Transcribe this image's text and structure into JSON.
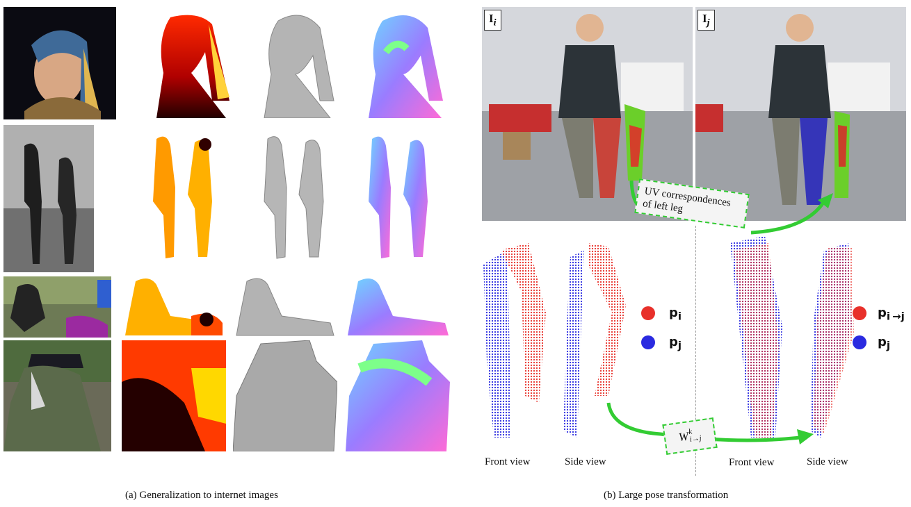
{
  "left_panel": {
    "caption": "(a)  Generalization to internet images"
  },
  "right_panel": {
    "caption": "(b)  Large pose transformation",
    "image_i_label": "I",
    "image_i_sub": "i",
    "image_j_label": "I",
    "image_j_sub": "j",
    "uv_label_line1": "UV correspondences",
    "uv_label_line2": "of left leg",
    "warp_label": "W",
    "warp_sup": "k",
    "warp_sub": "i→j",
    "legend_left": {
      "red": {
        "base": "p",
        "sub": "i"
      },
      "blue": {
        "base": "p",
        "sub": "j"
      }
    },
    "legend_right": {
      "red": {
        "base": "p",
        "sub": "i →j"
      },
      "blue": {
        "base": "p",
        "sub": "j"
      }
    },
    "view_labels": [
      "Front view",
      "Side view",
      "Front view",
      "Side view"
    ]
  },
  "colors": {
    "red_points": "#e8302a",
    "blue_points": "#2a2ae0",
    "green_arrow": "#33cc33"
  }
}
